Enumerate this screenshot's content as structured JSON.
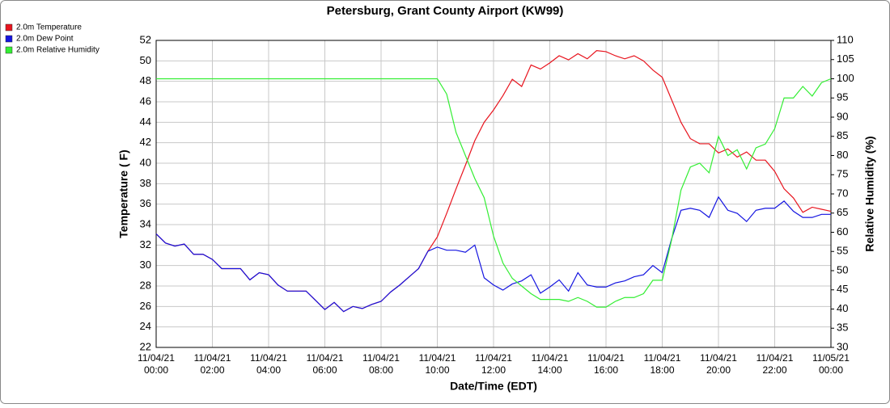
{
  "chart_data": {
    "type": "line",
    "title": "Petersburg, Grant County Airport (KW99)",
    "xlabel": "Date/Time (EDT)",
    "ylabel": "Temperature ( F)",
    "y2label": "Relative Humidity (%)",
    "x": [
      0,
      20,
      40,
      60,
      80,
      100,
      120,
      140,
      160,
      180,
      200,
      220,
      240,
      260,
      280,
      300,
      320,
      340,
      360,
      380,
      400,
      420,
      440,
      460,
      480,
      500,
      520,
      540,
      560,
      580,
      600,
      620,
      640,
      660,
      680,
      700,
      720,
      740,
      760,
      780,
      800,
      820,
      840,
      860,
      880,
      900,
      920,
      940,
      960,
      980,
      1000,
      1020,
      1040,
      1060,
      1080,
      1100,
      1120,
      1140,
      1160,
      1180,
      1200,
      1220,
      1240,
      1260,
      1280,
      1300,
      1320,
      1340,
      1360,
      1380,
      1400,
      1420,
      1440
    ],
    "xlim": [
      0,
      1440
    ],
    "xticks": [
      {
        "value": 0,
        "label": "11/04/21 00:00"
      },
      {
        "value": 120,
        "label": "11/04/21 02:00"
      },
      {
        "value": 240,
        "label": "11/04/21 04:00"
      },
      {
        "value": 360,
        "label": "11/04/21 06:00"
      },
      {
        "value": 480,
        "label": "11/04/21 08:00"
      },
      {
        "value": 600,
        "label": "11/04/21 10:00"
      },
      {
        "value": 720,
        "label": "11/04/21 12:00"
      },
      {
        "value": 840,
        "label": "11/04/21 14:00"
      },
      {
        "value": 960,
        "label": "11/04/21 16:00"
      },
      {
        "value": 1080,
        "label": "11/04/21 18:00"
      },
      {
        "value": 1200,
        "label": "11/04/21 20:00"
      },
      {
        "value": 1320,
        "label": "11/04/21 22:00"
      },
      {
        "value": 1440,
        "label": "11/05/21 00:00"
      }
    ],
    "ylim": [
      22,
      52
    ],
    "yticks": [
      22,
      24,
      26,
      28,
      30,
      32,
      34,
      36,
      38,
      40,
      42,
      44,
      46,
      48,
      50,
      52
    ],
    "y2lim": [
      30,
      110
    ],
    "y2ticks": [
      30,
      35,
      40,
      45,
      50,
      55,
      60,
      65,
      70,
      75,
      80,
      85,
      90,
      95,
      100,
      105,
      110
    ],
    "grid": true,
    "legend": "top-left",
    "series": [
      {
        "name": "2.0m Temperature",
        "color": "#e8141e",
        "values": [
          33.1,
          32.2,
          31.9,
          32.1,
          31.1,
          31.1,
          30.6,
          29.7,
          29.7,
          29.7,
          28.6,
          29.3,
          29.1,
          28.1,
          27.5,
          27.5,
          27.5,
          26.6,
          25.7,
          26.4,
          25.5,
          26.0,
          25.8,
          26.2,
          26.5,
          27.4,
          28.1,
          28.9,
          29.7,
          31.4,
          32.8,
          35.1,
          37.5,
          39.8,
          42.2,
          44.0,
          45.2,
          46.6,
          48.2,
          47.5,
          49.6,
          49.2,
          49.8,
          50.5,
          50.1,
          50.7,
          50.2,
          51.0,
          50.9,
          50.5,
          50.2,
          50.5,
          50.0,
          49.1,
          48.4,
          46.2,
          44.0,
          42.4,
          41.9,
          41.9,
          41.0,
          41.4,
          40.6,
          41.1,
          40.3,
          40.3,
          39.2,
          37.5,
          36.6,
          35.2,
          35.7,
          35.5,
          35.3
        ]
      },
      {
        "name": "2.0m Dew Point",
        "color": "#1414e0",
        "values": [
          33.1,
          32.2,
          31.9,
          32.1,
          31.1,
          31.1,
          30.6,
          29.7,
          29.7,
          29.7,
          28.6,
          29.3,
          29.1,
          28.1,
          27.5,
          27.5,
          27.5,
          26.6,
          25.7,
          26.4,
          25.5,
          26.0,
          25.8,
          26.2,
          26.5,
          27.4,
          28.1,
          28.9,
          29.7,
          31.4,
          31.8,
          31.5,
          31.5,
          31.3,
          32.0,
          28.8,
          28.1,
          27.6,
          28.2,
          28.5,
          29.1,
          27.3,
          27.9,
          28.6,
          27.5,
          29.3,
          28.1,
          27.9,
          27.9,
          28.3,
          28.5,
          28.9,
          29.1,
          30.0,
          29.3,
          32.6,
          35.4,
          35.6,
          35.4,
          34.7,
          36.7,
          35.4,
          35.1,
          34.3,
          35.4,
          35.6,
          35.6,
          36.3,
          35.3,
          34.7,
          34.7,
          35.0,
          35.0
        ]
      },
      {
        "name": "2.0m Relative Humidity",
        "color": "#33ee33",
        "axis": "y2",
        "values": [
          100,
          100,
          100,
          100,
          100,
          100,
          100,
          100,
          100,
          100,
          100,
          100,
          100,
          100,
          100,
          100,
          100,
          100,
          100,
          100,
          100,
          100,
          100,
          100,
          100,
          100,
          100,
          100,
          100,
          100,
          100,
          96,
          86,
          80,
          74,
          69,
          59,
          52,
          48,
          46,
          44,
          42.5,
          42.5,
          42.5,
          42,
          43,
          42,
          40.5,
          40.5,
          42,
          43,
          43,
          44,
          47.5,
          47.5,
          58,
          71,
          77,
          78,
          75.5,
          85,
          80,
          81.5,
          76.5,
          82,
          83,
          87,
          95,
          95,
          98,
          95.5,
          99,
          100
        ]
      }
    ]
  }
}
